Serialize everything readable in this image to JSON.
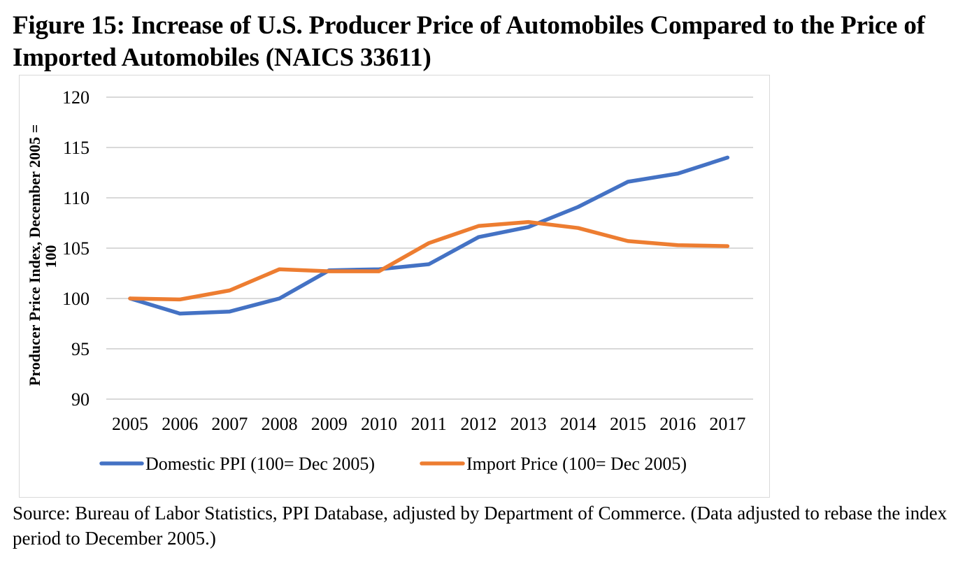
{
  "figure": {
    "title": "Figure 15: Increase of U.S. Producer Price of Automobiles Compared to the Price of Imported Automobiles (NAICS 33611)",
    "source": "Source:  Bureau of Labor Statistics, PPI Database, adjusted by Department of Commerce. (Data adjusted to rebase the index period to December 2005.)"
  },
  "chart_data": {
    "type": "line",
    "title": "Figure 15: Increase of U.S. Producer Price of Automobiles Compared to the Price of Imported Automobiles (NAICS 33611)",
    "xlabel": "",
    "ylabel": "Producer Price Index, December 2005 = 100",
    "ylabel_lines": [
      "Producer Price Index, December 2005 =",
      "100"
    ],
    "x": [
      "2005",
      "2006",
      "2007",
      "2008",
      "2009",
      "2010",
      "2011",
      "2012",
      "2013",
      "2014",
      "2015",
      "2016",
      "2017"
    ],
    "ylim": [
      90,
      120
    ],
    "yticks": [
      90,
      95,
      100,
      105,
      110,
      115,
      120
    ],
    "grid": "horizontal",
    "legend_position": "bottom",
    "series": [
      {
        "name": "Domestic PPI (100= Dec 2005)",
        "color": "#4472C4",
        "values": [
          100.0,
          98.5,
          98.7,
          100.0,
          102.8,
          102.9,
          103.4,
          106.1,
          107.1,
          109.1,
          111.6,
          112.4,
          114.0
        ]
      },
      {
        "name": "Import Price (100= Dec 2005)",
        "color": "#ED7D31",
        "values": [
          100.0,
          99.9,
          100.8,
          102.9,
          102.7,
          102.7,
          105.5,
          107.2,
          107.6,
          107.0,
          105.7,
          105.3,
          105.2
        ]
      }
    ]
  }
}
